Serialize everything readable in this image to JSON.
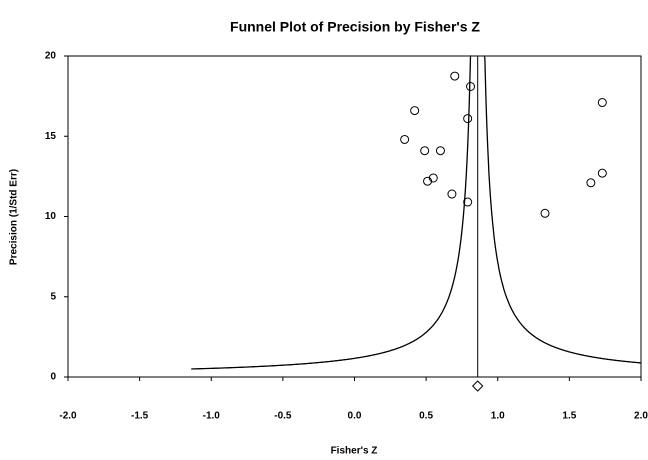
{
  "chart_data": {
    "type": "scatter",
    "title": "Funnel Plot of Precision by Fisher's Z",
    "xlabel": "Fisher's Z",
    "ylabel": "Precision (1/Std Err)",
    "x": [
      0.35,
      0.42,
      0.49,
      0.51,
      0.55,
      0.6,
      0.68,
      0.7,
      0.79,
      0.81,
      0.79,
      1.33,
      1.65,
      1.73,
      1.73
    ],
    "y": [
      14.8,
      16.6,
      14.1,
      12.2,
      12.4,
      14.1,
      11.4,
      18.75,
      16.1,
      18.1,
      10.9,
      10.2,
      12.1,
      12.7,
      17.1
    ],
    "summary": 0.86,
    "xlim": [
      -2.0,
      2.0
    ],
    "ylim": [
      0,
      20
    ],
    "xticks": [
      {
        "value": -2.0,
        "label": "-2.0"
      },
      {
        "value": -1.5,
        "label": "-1.5"
      },
      {
        "value": -1.0,
        "label": "-1.0"
      },
      {
        "value": -0.5,
        "label": "-0.5"
      },
      {
        "value": 0.0,
        "label": "0.0"
      },
      {
        "value": 0.5,
        "label": "0.5"
      },
      {
        "value": 1.0,
        "label": "1.0"
      },
      {
        "value": 1.5,
        "label": "1.5"
      },
      {
        "value": 2.0,
        "label": "2.0"
      }
    ],
    "yticks": [
      0,
      5,
      10,
      15,
      20
    ],
    "color": "#000000"
  }
}
